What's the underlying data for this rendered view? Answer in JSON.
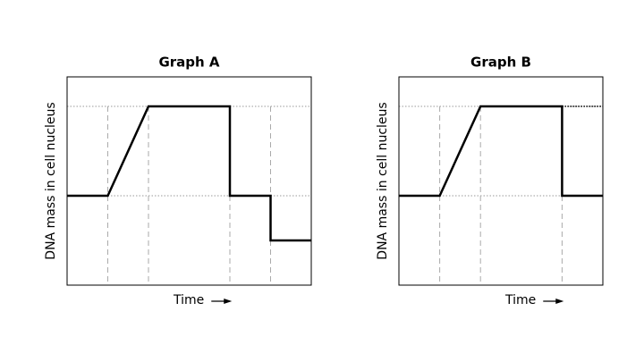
{
  "chart_data": [
    {
      "type": "line",
      "title": "Graph A",
      "xlabel": "Time",
      "ylabel": "DNA mass in cell nucleus",
      "xlim": [
        0,
        6
      ],
      "ylim": [
        0,
        2.33
      ],
      "hlines": [
        1,
        2
      ],
      "vlines": [
        1,
        2,
        4,
        5
      ],
      "series": [
        {
          "color": "#000000",
          "style": "solid",
          "x": [
            0,
            1,
            2,
            4,
            4,
            5,
            5,
            6
          ],
          "values": [
            1,
            1,
            2,
            2,
            1,
            1,
            0.5,
            0.5
          ]
        }
      ]
    },
    {
      "type": "line",
      "title": "Graph B",
      "xlabel": "Time",
      "ylabel": "DNA mass in cell nucleus",
      "xlim": [
        0,
        5
      ],
      "ylim": [
        0,
        2.33
      ],
      "hlines": [
        1,
        2
      ],
      "vlines": [
        1,
        2,
        4
      ],
      "series": [
        {
          "color": "#000000",
          "style": "solid",
          "x": [
            0,
            1,
            2,
            4,
            4,
            5
          ],
          "values": [
            1,
            1,
            2,
            2,
            1,
            1
          ]
        },
        {
          "color": "#000000",
          "style": "dotted",
          "x": [
            4,
            5
          ],
          "values": [
            2,
            2
          ]
        }
      ]
    }
  ]
}
